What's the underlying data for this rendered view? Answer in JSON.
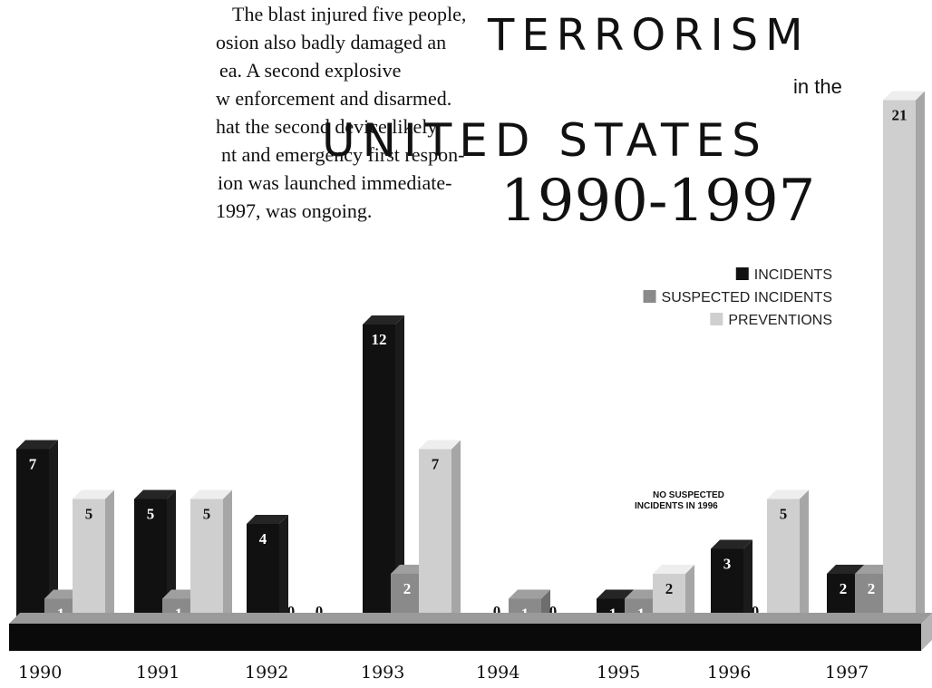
{
  "article": {
    "lines": [
      "The blast injured five people,",
      "osion also badly damaged an",
      "ea.  A second explosive",
      "w enforcement and disarmed.",
      "hat the second device likely",
      "nt and emergency first respon-",
      "ion was launched immediate-",
      "1997, was ongoing."
    ]
  },
  "chart_data": {
    "type": "bar",
    "title": "TERRORISM",
    "title_connector": "in the",
    "title_line2": "UNITED STATES",
    "title_years": "1990-1997",
    "categories": [
      "1990",
      "1991",
      "1992",
      "1993",
      "1994",
      "1995",
      "1996",
      "1997"
    ],
    "series": [
      {
        "name": "INCIDENTS",
        "color": "#111111",
        "values": [
          7,
          5,
          4,
          12,
          0,
          1,
          3,
          2
        ]
      },
      {
        "name": "SUSPECTED INCIDENTS",
        "color": "#8a8a8a",
        "values": [
          1,
          1,
          0,
          2,
          1,
          1,
          0,
          2
        ]
      },
      {
        "name": "PREVENTIONS",
        "color": "#cfcfcf",
        "values": [
          5,
          5,
          0,
          7,
          0,
          2,
          5,
          21
        ]
      }
    ],
    "legend_position": "right",
    "annotation": {
      "line1": "NO SUSPECTED",
      "line2": "INCIDENTS IN 1996"
    },
    "grid": false
  }
}
